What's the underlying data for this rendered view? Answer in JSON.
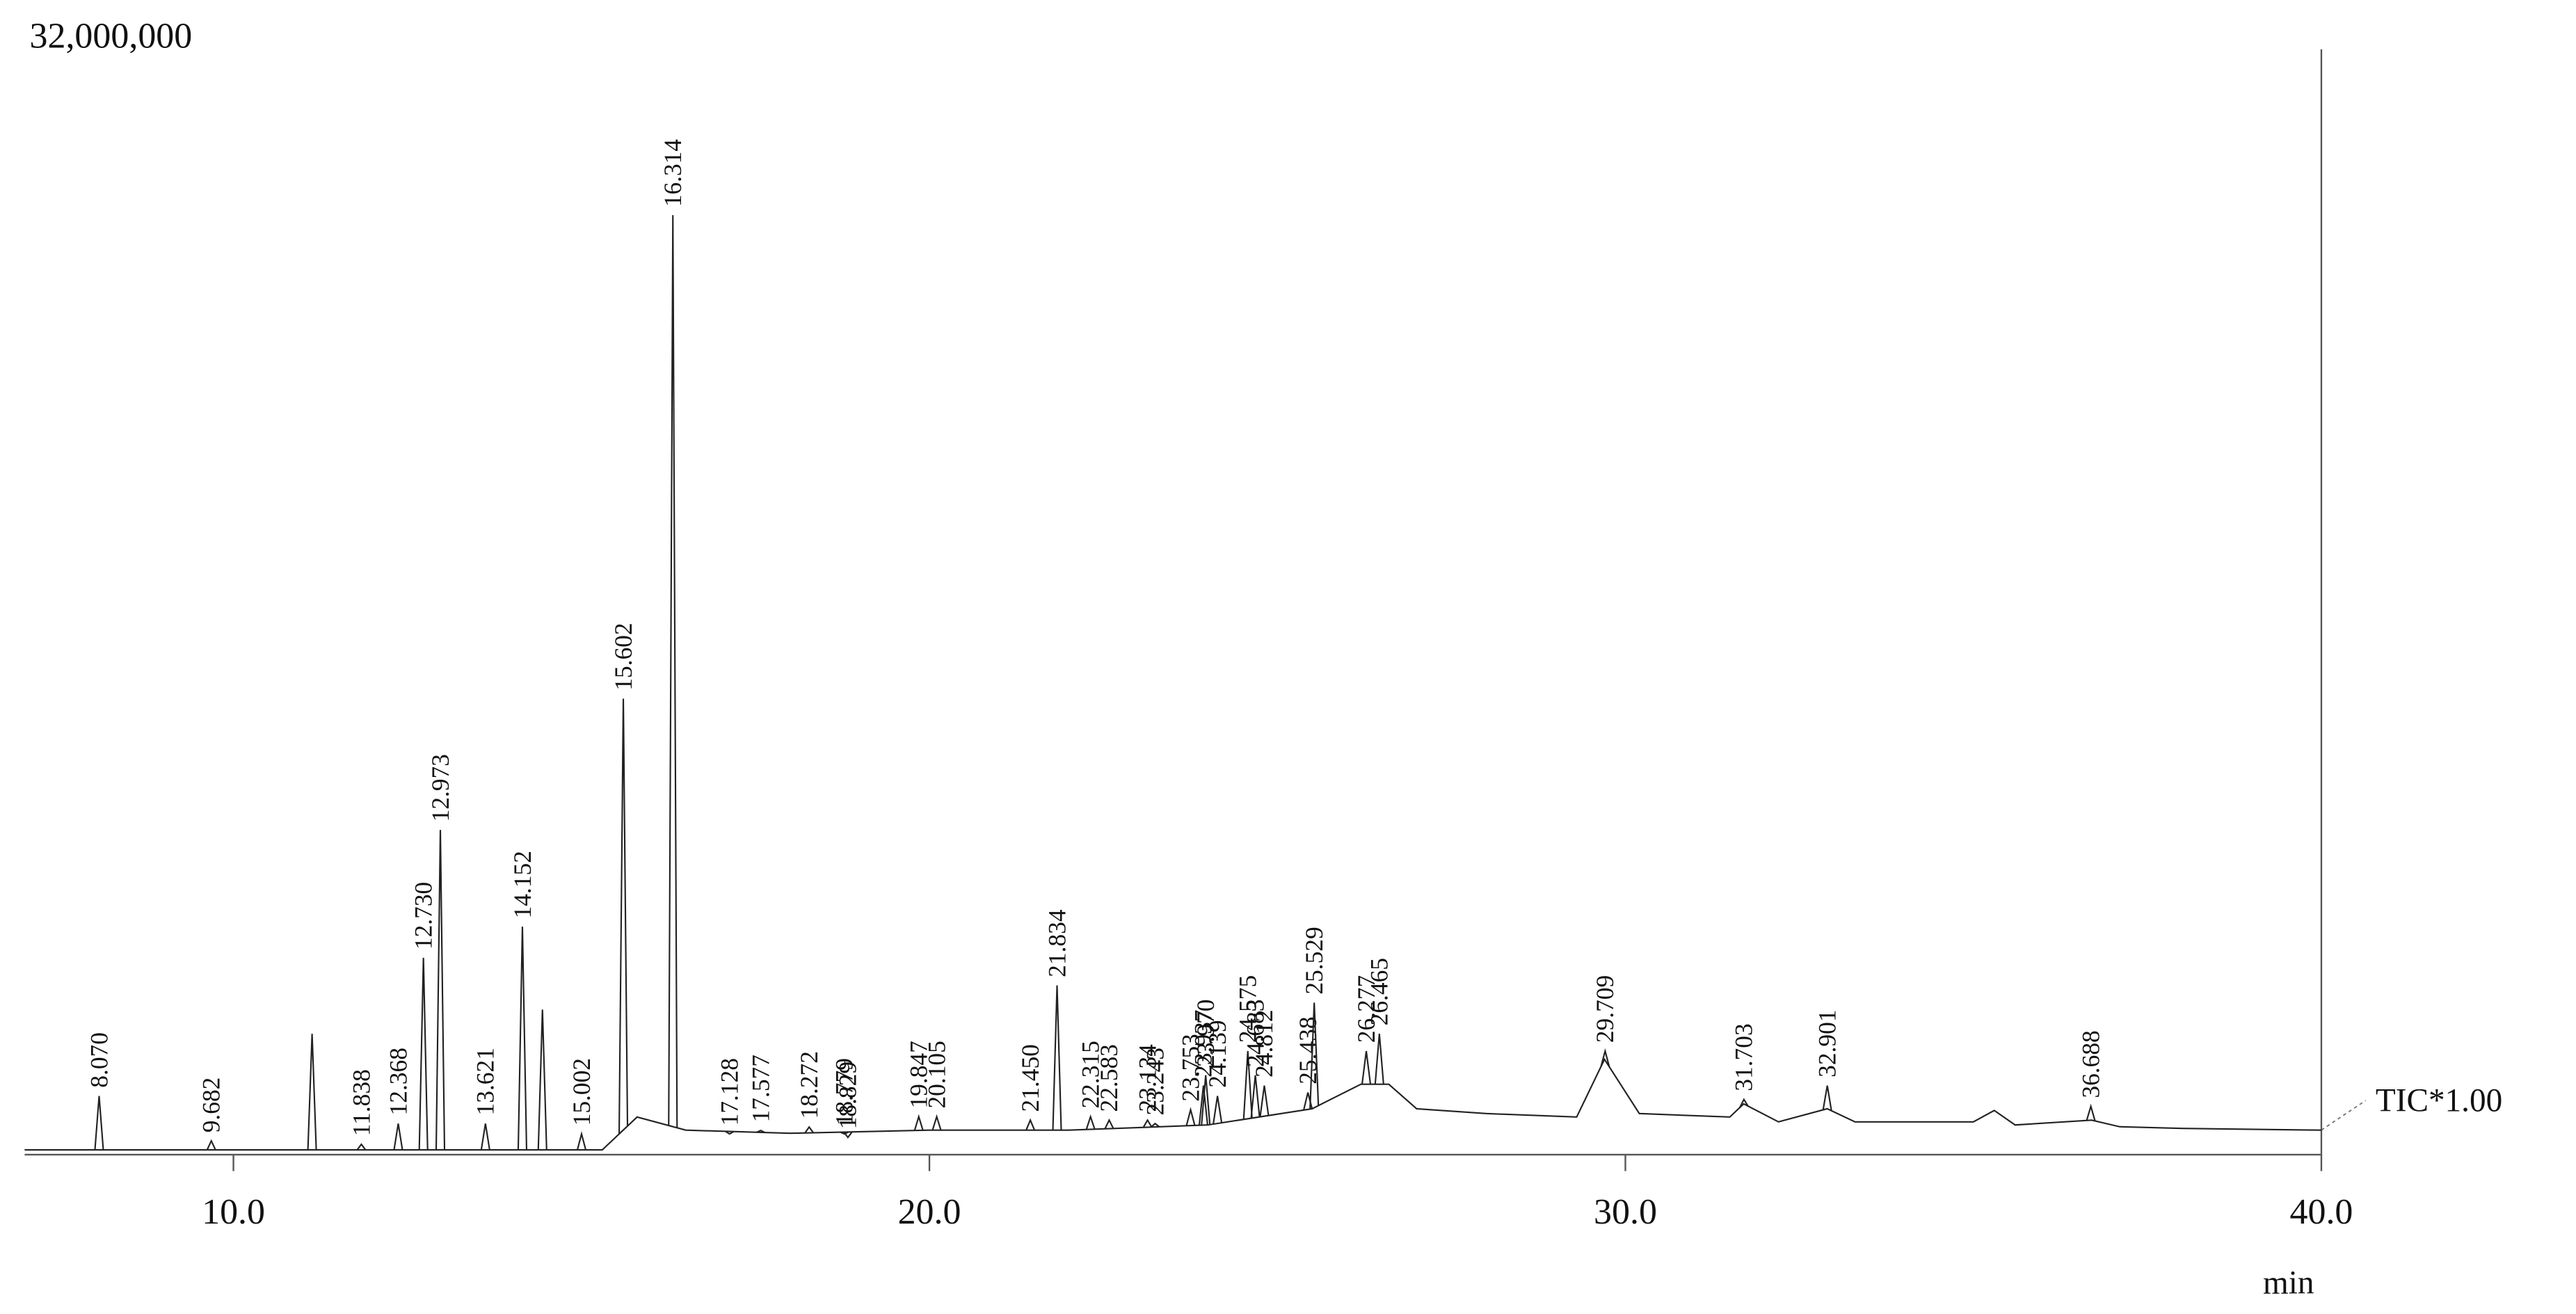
{
  "chart_data": {
    "type": "chromatogram",
    "series_name": "TIC*1.00",
    "x_label": "min",
    "color": "#222222",
    "xlim": [
      7.0,
      40.0
    ],
    "ylim": [
      0,
      32000000
    ],
    "xticks": [
      {
        "value": 10,
        "label": "10.0"
      },
      {
        "value": 20,
        "label": "20.0"
      },
      {
        "value": 30,
        "label": "30.0"
      },
      {
        "value": 40,
        "label": "40.0"
      }
    ],
    "yticks": [
      {
        "value": 32000000,
        "label": "32,000,000"
      }
    ],
    "baseline_x": [
      7.0,
      15.3,
      15.8,
      16.5,
      18.0,
      20.0,
      22.0,
      24.0,
      25.5,
      26.2,
      26.6,
      27.0,
      28.0,
      29.3,
      29.7,
      30.2,
      31.5,
      31.7,
      32.2,
      32.9,
      33.3,
      35.0,
      35.3,
      35.6,
      36.7,
      37.1,
      38.0,
      40.0
    ],
    "baseline_values": [
      140000,
      140000,
      1090000,
      710000,
      620000,
      710000,
      710000,
      860000,
      1330000,
      2040000,
      2040000,
      1330000,
      1190000,
      1090000,
      2760000,
      1190000,
      1090000,
      1470000,
      950000,
      1330000,
      950000,
      950000,
      1280000,
      860000,
      1000000,
      810000,
      760000,
      710000
    ],
    "peak_times": [
      8.07,
      9.682,
      11.13,
      11.838,
      12.368,
      12.73,
      12.973,
      13.621,
      14.152,
      14.44,
      15.002,
      15.602,
      16.314,
      17.128,
      17.577,
      18.272,
      18.779,
      18.829,
      19.847,
      20.105,
      21.45,
      21.834,
      22.315,
      22.583,
      23.134,
      23.243,
      23.753,
      23.937,
      23.97,
      24.139,
      24.575,
      24.683,
      24.812,
      25.438,
      25.529,
      26.277,
      26.465,
      29.709,
      31.703,
      32.901,
      36.688
    ],
    "peak_labels": [
      "8.070",
      "9.682",
      null,
      "11.838",
      "12.368",
      "12.730",
      "12.973",
      "13.621",
      "14.152",
      null,
      "15.002",
      "15.602",
      "16.314",
      "17.128",
      "17.577",
      "18.272",
      "18.779",
      "18.829",
      "19.847",
      "20.105",
      "21.450",
      "21.834",
      "22.315",
      "22.583",
      "23.134",
      "23.243",
      "23.753",
      "23.937",
      "23.970",
      "24.139",
      "24.575",
      "24.683",
      "24.812",
      "25.438",
      "25.529",
      "26.277",
      "26.465",
      "29.709",
      "31.703",
      "32.901",
      "36.688"
    ],
    "peak_heights": [
      1700000,
      400000,
      3500000,
      300000,
      900000,
      5700000,
      9400000,
      900000,
      6600000,
      4200000,
      600000,
      13200000,
      27200000,
      600000,
      700000,
      800000,
      600000,
      500000,
      1100000,
      1100000,
      1000000,
      4900000,
      1100000,
      1000000,
      1000000,
      900000,
      1300000,
      2000000,
      2300000,
      1700000,
      3000000,
      2300000,
      2000000,
      1800000,
      4400000,
      3000000,
      3500000,
      3000000,
      1600000,
      2000000,
      1400000
    ]
  }
}
